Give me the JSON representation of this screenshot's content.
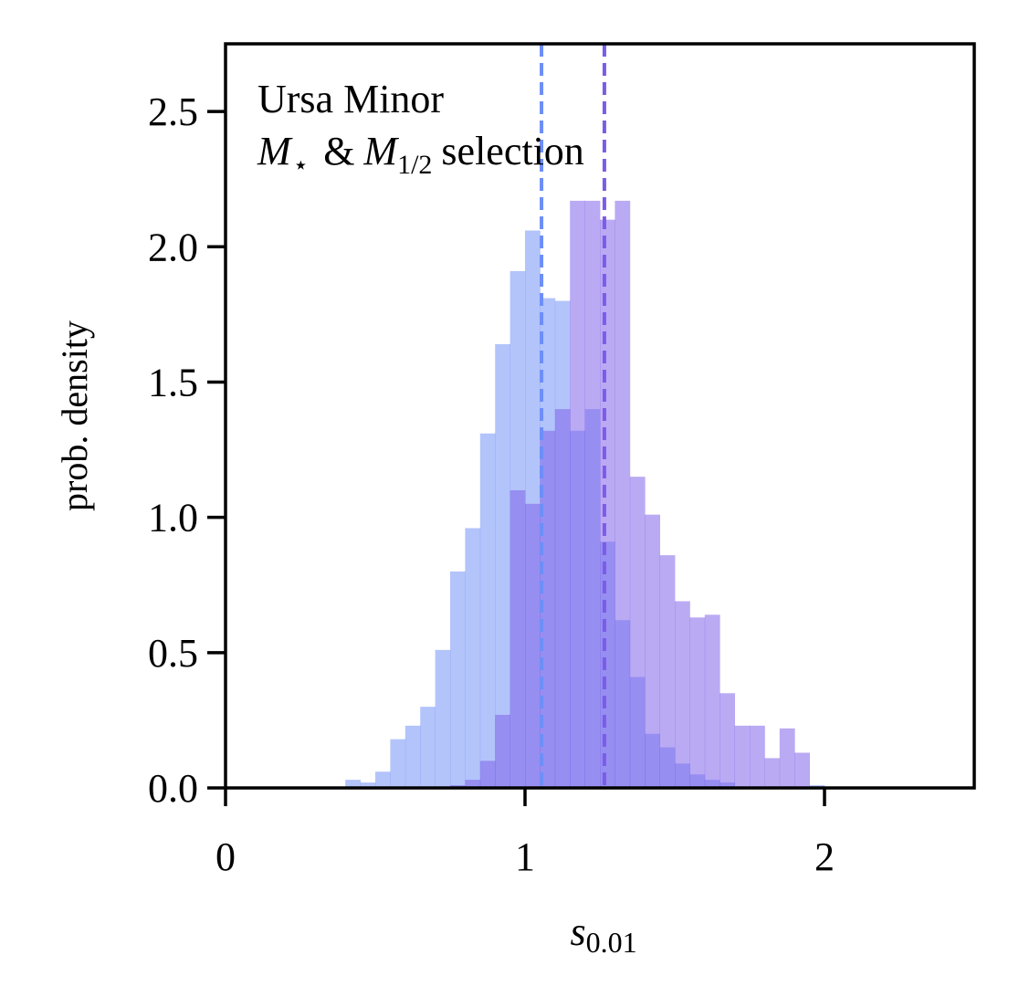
{
  "chart_data": {
    "type": "histogram",
    "title": "",
    "annotation": {
      "line1": "Ursa Minor",
      "line2_sym_m": "M",
      "line2_sym_star": "⋆",
      "line2_amp": "&",
      "line2_sub": "1/2",
      "line2_rest": "selection"
    },
    "xlabel_main": "s",
    "xlabel_sub": "0.01",
    "ylabel": "prob. density",
    "xlim": [
      0,
      2.5
    ],
    "ylim": [
      0,
      2.75
    ],
    "xticks": [
      0,
      1,
      2
    ],
    "xtick_labels": [
      "0",
      "1",
      "2"
    ],
    "yticks": [
      0.0,
      0.5,
      1.0,
      1.5,
      2.0,
      2.5
    ],
    "ytick_labels": [
      "0.0",
      "0.5",
      "1.0",
      "1.5",
      "2.0",
      "2.5"
    ],
    "bin_width": 0.05,
    "series": [
      {
        "color": "#6d8ef7",
        "opacity": 0.52,
        "bins": [
          {
            "x": 0.4,
            "y": 0.03
          },
          {
            "x": 0.45,
            "y": 0.02
          },
          {
            "x": 0.5,
            "y": 0.06
          },
          {
            "x": 0.55,
            "y": 0.18
          },
          {
            "x": 0.6,
            "y": 0.23
          },
          {
            "x": 0.65,
            "y": 0.3
          },
          {
            "x": 0.7,
            "y": 0.51
          },
          {
            "x": 0.75,
            "y": 0.8
          },
          {
            "x": 0.8,
            "y": 0.96
          },
          {
            "x": 0.85,
            "y": 1.31
          },
          {
            "x": 0.9,
            "y": 1.64
          },
          {
            "x": 0.95,
            "y": 1.91
          },
          {
            "x": 1.0,
            "y": 2.06
          },
          {
            "x": 1.05,
            "y": 1.81
          },
          {
            "x": 1.1,
            "y": 1.8
          },
          {
            "x": 1.15,
            "y": 1.32
          },
          {
            "x": 1.2,
            "y": 1.4
          },
          {
            "x": 1.25,
            "y": 0.91
          },
          {
            "x": 1.3,
            "y": 0.62
          },
          {
            "x": 1.35,
            "y": 0.41
          },
          {
            "x": 1.4,
            "y": 0.2
          },
          {
            "x": 1.45,
            "y": 0.15
          },
          {
            "x": 1.5,
            "y": 0.09
          },
          {
            "x": 1.55,
            "y": 0.05
          },
          {
            "x": 1.6,
            "y": 0.03
          },
          {
            "x": 1.65,
            "y": 0.02
          },
          {
            "x": 1.95,
            "y": 0.01
          }
        ]
      },
      {
        "color": "#7b5ce8",
        "opacity": 0.52,
        "bins": [
          {
            "x": 0.75,
            "y": 0.01
          },
          {
            "x": 0.8,
            "y": 0.03
          },
          {
            "x": 0.85,
            "y": 0.1
          },
          {
            "x": 0.9,
            "y": 0.27
          },
          {
            "x": 0.95,
            "y": 1.1
          },
          {
            "x": 1.0,
            "y": 1.05
          },
          {
            "x": 1.05,
            "y": 1.32
          },
          {
            "x": 1.1,
            "y": 1.4
          },
          {
            "x": 1.15,
            "y": 2.17
          },
          {
            "x": 1.2,
            "y": 2.17
          },
          {
            "x": 1.25,
            "y": 2.1
          },
          {
            "x": 1.3,
            "y": 2.17
          },
          {
            "x": 1.35,
            "y": 1.15
          },
          {
            "x": 1.4,
            "y": 1.01
          },
          {
            "x": 1.45,
            "y": 0.86
          },
          {
            "x": 1.5,
            "y": 0.69
          },
          {
            "x": 1.55,
            "y": 0.63
          },
          {
            "x": 1.6,
            "y": 0.64
          },
          {
            "x": 1.65,
            "y": 0.35
          },
          {
            "x": 1.7,
            "y": 0.23
          },
          {
            "x": 1.75,
            "y": 0.23
          },
          {
            "x": 1.8,
            "y": 0.11
          },
          {
            "x": 1.85,
            "y": 0.22
          },
          {
            "x": 1.9,
            "y": 0.13
          }
        ]
      }
    ],
    "reference_lines": [
      {
        "x": 1.055,
        "color": "#6d8ef7",
        "style": "dashed"
      },
      {
        "x": 1.265,
        "color": "#7b5ce8",
        "style": "dashed"
      }
    ]
  }
}
